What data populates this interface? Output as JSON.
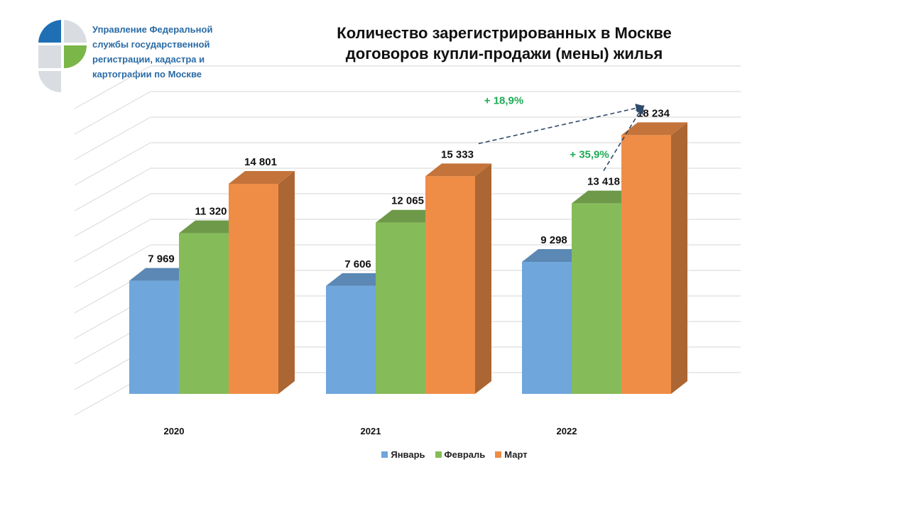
{
  "header": {
    "org_name_lines": [
      "Управление Федеральной",
      "службы государственной",
      "регистрации, кадастра и",
      "картографии по Москве"
    ],
    "logo_icon": "rosreestr-logo-icon"
  },
  "chart_data": {
    "type": "bar",
    "title": "Количество зарегистрированных в Москве договоров купли-продажи (мены) жилья",
    "title_lines": [
      "Количество зарегистрированных в Москве",
      "договоров купли-продажи (мены) жилья"
    ],
    "categories": [
      "2020",
      "2021",
      "2022"
    ],
    "series": [
      {
        "name": "Январь",
        "color": "#6fa6dc",
        "values": [
          7969,
          7606,
          9298
        ],
        "labels": [
          "7 969",
          "7 606",
          "9 298"
        ]
      },
      {
        "name": "Февраль",
        "color": "#86bb59",
        "values": [
          11320,
          12065,
          13418
        ],
        "labels": [
          "11 320",
          "12 065",
          "13 418"
        ]
      },
      {
        "name": "Март",
        "color": "#ef8d47",
        "values": [
          14801,
          15333,
          18234
        ],
        "labels": [
          "14 801",
          "15 333",
          "18 234"
        ]
      }
    ],
    "ylim": [
      0,
      20000
    ],
    "grid": true,
    "legend_position": "bottom",
    "annotations": [
      {
        "text": "+ 18,9%",
        "from": {
          "category": "2021",
          "series": "Март"
        },
        "to": {
          "category": "2022",
          "series": "Март"
        }
      },
      {
        "text": "+ 35,9%",
        "from": {
          "category": "2022",
          "series": "Февраль"
        },
        "to": {
          "category": "2022",
          "series": "Март"
        }
      }
    ]
  }
}
